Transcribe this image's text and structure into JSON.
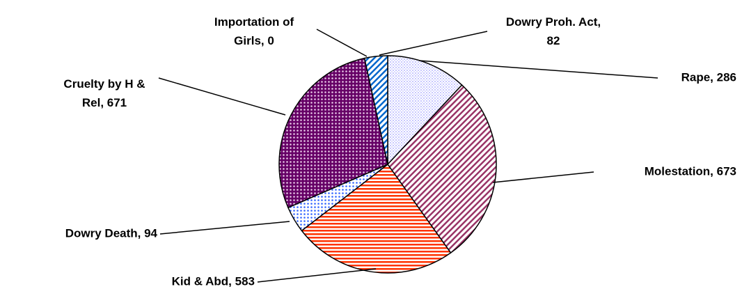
{
  "chart_data": {
    "type": "pie",
    "categories": [
      "Rape",
      "Molestation",
      "Kid & Abd",
      "Dowry Death",
      "Cruelty by H & Rel",
      "Importation of Girls",
      "Dowry Proh. Act"
    ],
    "values": [
      286,
      673,
      583,
      94,
      671,
      0,
      82
    ],
    "value_labels": [
      "Rape, 286",
      "Molestation, 673",
      "Kid & Abd, 583",
      "Dowry Death, 94",
      "Cruelty by H & Rel, 671",
      "Importation of Girls, 0",
      "Dowry Proh. Act, 82"
    ],
    "colors": [
      "#9999ff",
      "#993366",
      "#ff3300",
      "#3366ff",
      "#660066",
      "#3366ff",
      "#0066cc"
    ],
    "patterns": [
      "grid",
      "diagonal",
      "horizontal",
      "dots",
      "dots",
      "diagonal",
      "diagonal"
    ]
  }
}
